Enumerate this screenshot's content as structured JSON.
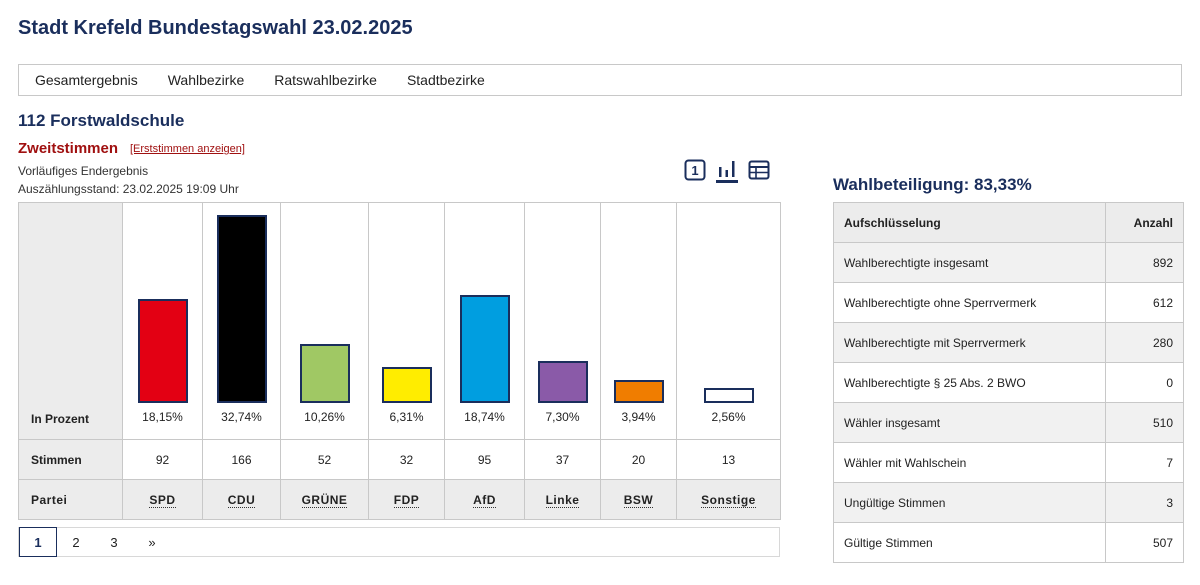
{
  "page_title": "Stadt Krefeld Bundestagswahl 23.02.2025",
  "nav": [
    "Gesamtergebnis",
    "Wahlbezirke",
    "Ratswahlbezirke",
    "Stadtbezirke"
  ],
  "district_title": "112 Forstwaldschule",
  "vote_type": "Zweitstimmen",
  "vote_toggle": "[Erststimmen anzeigen]",
  "status": [
    "Vorläufiges Endergebnis",
    "Auszählungsstand: 23.02.2025 19:09 Uhr"
  ],
  "view_icons": [
    "one-icon",
    "bar-chart-icon",
    "table-icon"
  ],
  "chart": {
    "row_labels": {
      "percent": "In Prozent",
      "votes": "Stimmen",
      "party": "Partei"
    },
    "parties": [
      {
        "name": "SPD",
        "percent_label": "18,15%",
        "percent": 18.15,
        "votes": "92",
        "color": "#e30013"
      },
      {
        "name": "CDU",
        "percent_label": "32,74%",
        "percent": 32.74,
        "votes": "166",
        "color": "#000000"
      },
      {
        "name": "GRÜNE",
        "percent_label": "10,26%",
        "percent": 10.26,
        "votes": "52",
        "color": "#a0c864"
      },
      {
        "name": "FDP",
        "percent_label": "6,31%",
        "percent": 6.31,
        "votes": "32",
        "color": "#ffed00"
      },
      {
        "name": "AfD",
        "percent_label": "18,74%",
        "percent": 18.74,
        "votes": "95",
        "color": "#009ee0"
      },
      {
        "name": "Linke",
        "percent_label": "7,30%",
        "percent": 7.3,
        "votes": "37",
        "color": "#8a5aa8"
      },
      {
        "name": "BSW",
        "percent_label": "3,94%",
        "percent": 3.94,
        "votes": "20",
        "color": "#f07d00"
      },
      {
        "name": "Sonstige",
        "percent_label": "2,56%",
        "percent": 2.56,
        "votes": "13",
        "color": "#ffffff"
      }
    ]
  },
  "pagination": {
    "pages": [
      "1",
      "2",
      "3"
    ],
    "next": "»",
    "active": "1"
  },
  "turnout": {
    "title": "Wahlbeteiligung: 83,33%",
    "headers": [
      "Aufschlüsselung",
      "Anzahl"
    ],
    "rows": [
      {
        "label": "Wahlberechtigte insgesamt",
        "value": "892"
      },
      {
        "label": "Wahlberechtigte ohne Sperrvermerk",
        "value": "612"
      },
      {
        "label": "Wahlberechtigte mit Sperrvermerk",
        "value": "280"
      },
      {
        "label": "Wahlberechtigte § 25 Abs. 2 BWO",
        "value": "0"
      },
      {
        "label": "Wähler insgesamt",
        "value": "510"
      },
      {
        "label": "Wähler mit Wahlschein",
        "value": "7"
      },
      {
        "label": "Ungültige Stimmen",
        "value": "3"
      },
      {
        "label": "Gültige Stimmen",
        "value": "507"
      }
    ]
  }
}
